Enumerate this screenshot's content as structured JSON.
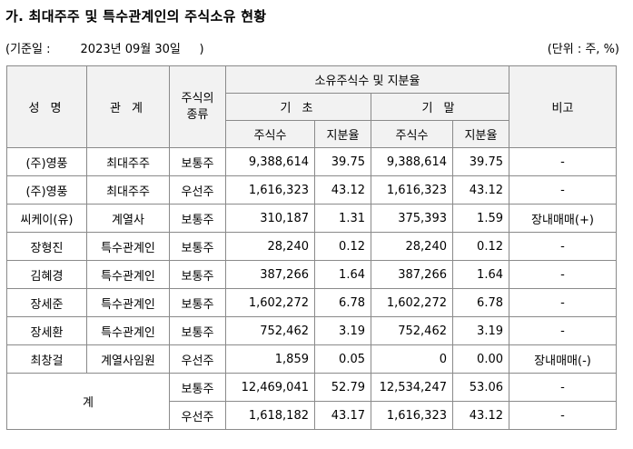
{
  "title": "가. 최대주주 및 특수관계인의 주식소유 현황",
  "basis_date": "(기준일 :        2023년 09월 30일     )",
  "unit": "(단위 : 주, %)",
  "table": {
    "header": {
      "name": "성 명",
      "relation": "관 계",
      "stock_type": "주식의 종류",
      "holdings_group": "소유주식수 및 지분율",
      "begin": "기 초",
      "end": "기 말",
      "shares": "주식수",
      "ratio": "지분율",
      "remarks": "비고"
    },
    "rows": [
      {
        "name": "(주)영풍",
        "relation": "최대주주",
        "type": "보통주",
        "begin_shares": "9,388,614",
        "begin_ratio": "39.75",
        "end_shares": "9,388,614",
        "end_ratio": "39.75",
        "remark": "-"
      },
      {
        "name": "(주)영풍",
        "relation": "최대주주",
        "type": "우선주",
        "begin_shares": "1,616,323",
        "begin_ratio": "43.12",
        "end_shares": "1,616,323",
        "end_ratio": "43.12",
        "remark": "-"
      },
      {
        "name": "씨케이(유)",
        "relation": "계열사",
        "type": "보통주",
        "begin_shares": "310,187",
        "begin_ratio": "1.31",
        "end_shares": "375,393",
        "end_ratio": "1.59",
        "remark": "장내매매(+)"
      },
      {
        "name": "장형진",
        "relation": "특수관계인",
        "type": "보통주",
        "begin_shares": "28,240",
        "begin_ratio": "0.12",
        "end_shares": "28,240",
        "end_ratio": "0.12",
        "remark": "-"
      },
      {
        "name": "김혜경",
        "relation": "특수관계인",
        "type": "보통주",
        "begin_shares": "387,266",
        "begin_ratio": "1.64",
        "end_shares": "387,266",
        "end_ratio": "1.64",
        "remark": "-"
      },
      {
        "name": "장세준",
        "relation": "특수관계인",
        "type": "보통주",
        "begin_shares": "1,602,272",
        "begin_ratio": "6.78",
        "end_shares": "1,602,272",
        "end_ratio": "6.78",
        "remark": "-"
      },
      {
        "name": "장세환",
        "relation": "특수관계인",
        "type": "보통주",
        "begin_shares": "752,462",
        "begin_ratio": "3.19",
        "end_shares": "752,462",
        "end_ratio": "3.19",
        "remark": "-"
      },
      {
        "name": "최창걸",
        "relation": "계열사임원",
        "type": "우선주",
        "begin_shares": "1,859",
        "begin_ratio": "0.05",
        "end_shares": "0",
        "end_ratio": "0.00",
        "remark": "장내매매(-)"
      }
    ],
    "total": {
      "label": "계",
      "rows": [
        {
          "type": "보통주",
          "begin_shares": "12,469,041",
          "begin_ratio": "52.79",
          "end_shares": "12,534,247",
          "end_ratio": "53.06",
          "remark": "-"
        },
        {
          "type": "우선주",
          "begin_shares": "1,618,182",
          "begin_ratio": "43.17",
          "end_shares": "1,616,323",
          "end_ratio": "43.12",
          "remark": "-"
        }
      ]
    }
  }
}
